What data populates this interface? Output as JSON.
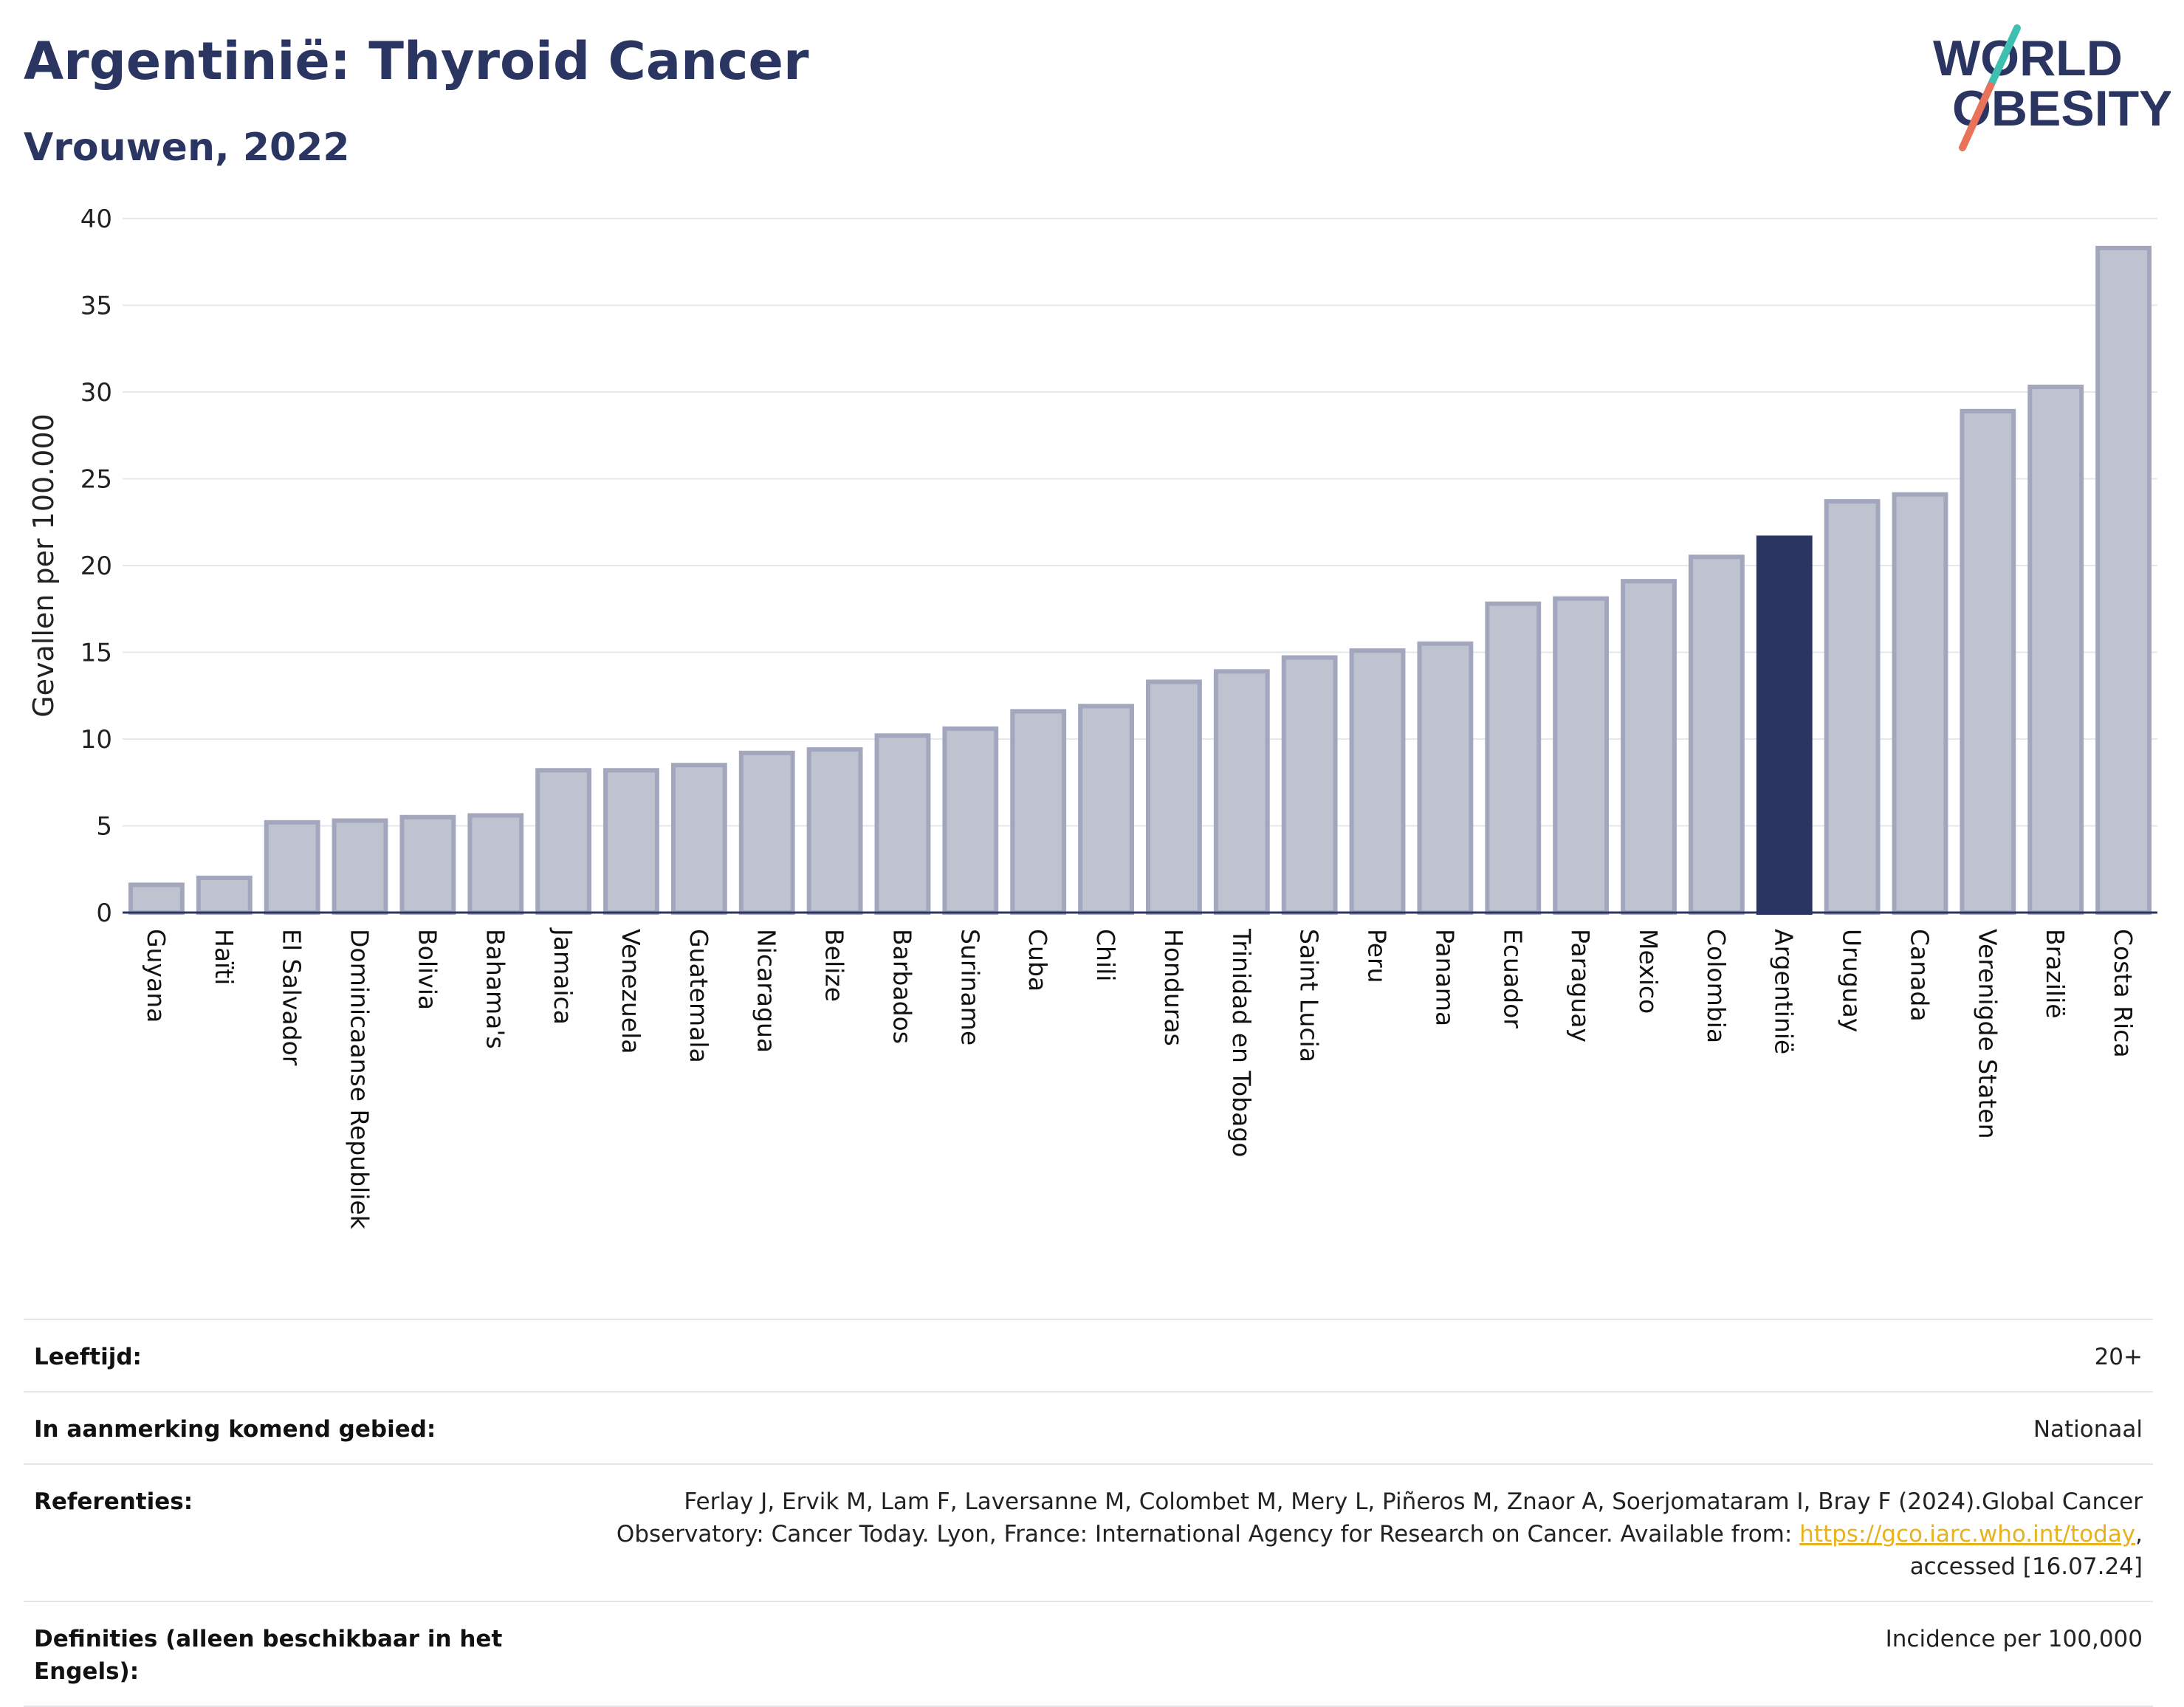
{
  "header": {
    "title": "Argentinië: Thyroid Cancer",
    "subtitle": "Vrouwen, 2022"
  },
  "logo": {
    "line1": "WORLD",
    "line2": "OBESITY"
  },
  "colors": {
    "bar_fill": "#bfc2cf",
    "bar_stroke": "#a2a7bd",
    "highlight": "#2b3561",
    "grid": "#e6e7ec",
    "logo_teal": "#3fbfb0",
    "logo_coral": "#e8735a"
  },
  "chart_data": {
    "type": "bar",
    "ylabel": "Gevallen per 100.000",
    "ylim": [
      0,
      40
    ],
    "yticks": [
      0,
      5,
      10,
      15,
      20,
      25,
      30,
      35,
      40
    ],
    "grid": true,
    "highlight": "Argentinië",
    "categories": [
      "Guyana",
      "Haïti",
      "El Salvador",
      "Dominicaanse Republiek",
      "Bolivia",
      "Bahama's",
      "Jamaica",
      "Venezuela",
      "Guatemala",
      "Nicaragua",
      "Belize",
      "Barbados",
      "Suriname",
      "Cuba",
      "Chili",
      "Honduras",
      "Trinidad en Tobago",
      "Saint Lucia",
      "Peru",
      "Panama",
      "Ecuador",
      "Paraguay",
      "Mexico",
      "Colombia",
      "Argentinië",
      "Uruguay",
      "Canada",
      "Verenigde Staten",
      "Brazilië",
      "Costa Rica"
    ],
    "values": [
      1.6,
      2.0,
      5.2,
      5.3,
      5.5,
      5.6,
      8.2,
      8.2,
      8.5,
      9.2,
      9.4,
      10.2,
      10.6,
      11.6,
      11.9,
      13.3,
      13.9,
      14.7,
      15.1,
      15.5,
      17.8,
      18.1,
      19.1,
      20.5,
      21.6,
      23.7,
      24.1,
      28.9,
      30.3,
      38.3
    ]
  },
  "meta": {
    "age_label": "Leeftijd:",
    "age_value": "20+",
    "area_label": "In aanmerking komend gebied:",
    "area_value": "Nationaal",
    "ref_label": "Referenties:",
    "ref_text_1": "Ferlay J, Ervik M, Lam F, Laversanne M, Colombet M, Mery L, Piñeros M, Znaor A, Soerjomataram I, Bray F (2024).Global Cancer Observatory: Cancer Today. Lyon, France: International Agency for Research on Cancer. Available from: ",
    "ref_link": "https://gco.iarc.who.int/today",
    "ref_text_2": ", accessed [16.07.24]",
    "def_label": "Definities (alleen beschikbaar in het Engels):",
    "def_value": "Incidence per 100,000"
  }
}
